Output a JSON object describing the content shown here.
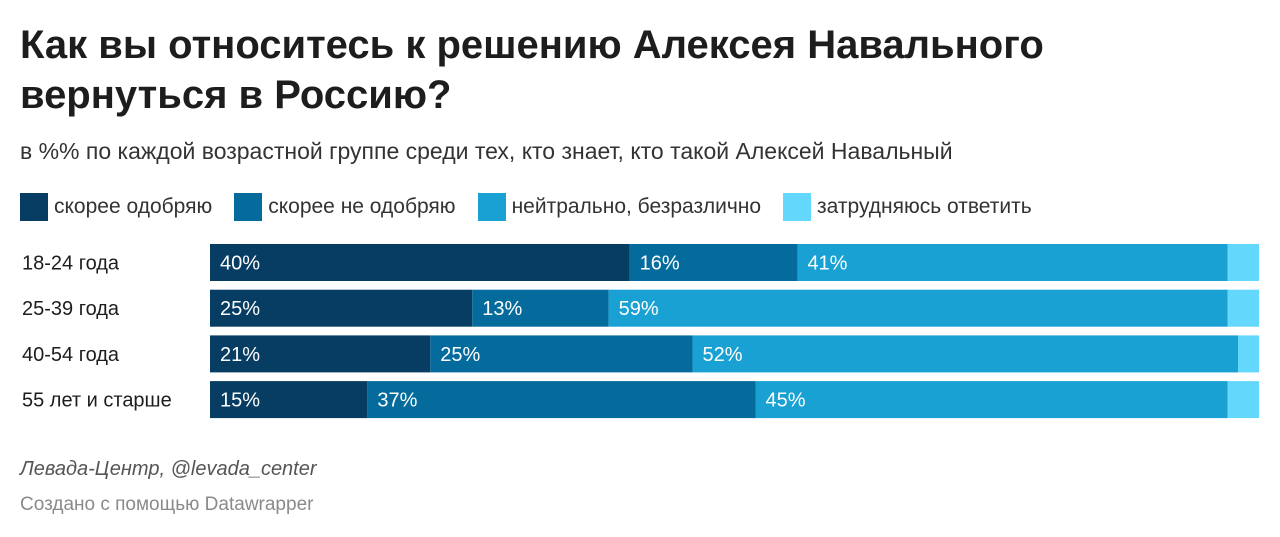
{
  "header": {
    "title": "Как вы относитесь к решению Алексея Навального вернуться в Россию?",
    "subtitle": "в %% по каждой возрастной группе среди тех, кто знает, кто такой Алексей Навальный"
  },
  "legend": [
    {
      "label": "скорее одобряю",
      "color": "#073d63"
    },
    {
      "label": "скорее не одобряю",
      "color": "#056b9c"
    },
    {
      "label": "нейтрально, безразлично",
      "color": "#18a1d2"
    },
    {
      "label": "затрудняюсь ответить",
      "color": "#64d7fd"
    }
  ],
  "chart_data": {
    "type": "bar",
    "orientation": "horizontal",
    "stacked": true,
    "xlim": [
      0,
      100
    ],
    "categories": [
      "18-24 года",
      "25-39 года",
      "40-54 года",
      "55 лет и старше"
    ],
    "series": [
      {
        "name": "скорее одобряю",
        "color": "#073d63",
        "values": [
          40,
          25,
          21,
          15
        ],
        "labels": [
          "40%",
          "25%",
          "21%",
          "15%"
        ]
      },
      {
        "name": "скорее не одобряю",
        "color": "#056b9c",
        "values": [
          16,
          13,
          25,
          37
        ],
        "labels": [
          "16%",
          "13%",
          "25%",
          "37%"
        ]
      },
      {
        "name": "нейтрально, безразлично",
        "color": "#18a1d2",
        "values": [
          41,
          59,
          52,
          45
        ],
        "labels": [
          "41%",
          "59%",
          "52%",
          "45%"
        ]
      },
      {
        "name": "затрудняюсь ответить",
        "color": "#64d7fd",
        "values": [
          4,
          2,
          2,
          2
        ],
        "labels": [
          "",
          "",
          "",
          ""
        ]
      }
    ]
  },
  "footer": {
    "source": "Левада-Центр, @levada_center",
    "credit": "Создано с помощью Datawrapper"
  }
}
